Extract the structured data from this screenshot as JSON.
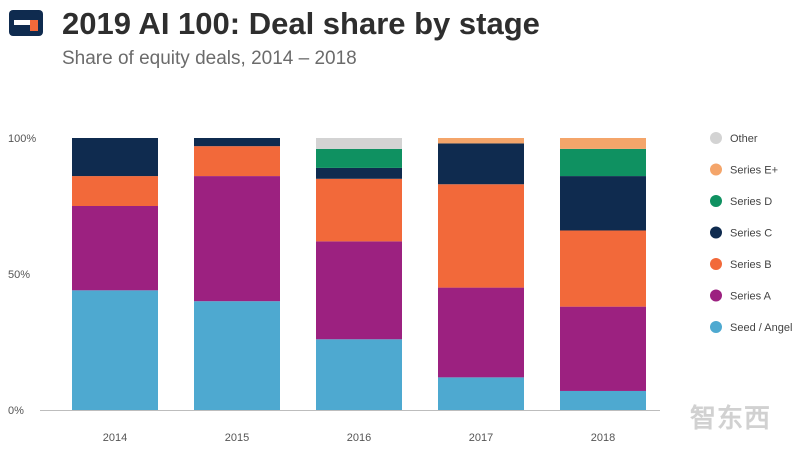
{
  "header": {
    "title": "2019 AI 100: Deal share by stage",
    "subtitle": "Share of equity deals, 2014 – 2018"
  },
  "brand": {
    "logo_dark": "#0f2b4f",
    "logo_accent": "#f2693a",
    "watermark": "智东西"
  },
  "chart_data": {
    "type": "bar",
    "stacked": true,
    "title": "2019 AI 100: Deal share by stage",
    "subtitle": "Share of equity deals, 2014 – 2018",
    "xlabel": "",
    "ylabel": "",
    "ylim": [
      0,
      100
    ],
    "y_ticks": [
      {
        "value": 0,
        "label": "0%"
      },
      {
        "value": 50,
        "label": "50%"
      },
      {
        "value": 100,
        "label": "100%"
      }
    ],
    "categories": [
      "2014",
      "2015",
      "2016",
      "2017",
      "2018"
    ],
    "legend_position": "right",
    "series": [
      {
        "name": "Seed / Angel",
        "color": "#4ea9d0",
        "values": [
          44,
          40,
          26,
          12,
          7
        ]
      },
      {
        "name": "Series A",
        "color": "#9c2180",
        "values": [
          31,
          46,
          36,
          33,
          31
        ]
      },
      {
        "name": "Series B",
        "color": "#f2693a",
        "values": [
          11,
          11,
          23,
          38,
          28
        ]
      },
      {
        "name": "Series C",
        "color": "#0f2b4f",
        "values": [
          14,
          3,
          4,
          15,
          20
        ]
      },
      {
        "name": "Series D",
        "color": "#0f9161",
        "values": [
          0,
          0,
          7,
          0,
          10
        ]
      },
      {
        "name": "Series E+",
        "color": "#f4a56a",
        "values": [
          0,
          0,
          0,
          2,
          4
        ]
      },
      {
        "name": "Other",
        "color": "#d3d3d3",
        "values": [
          0,
          0,
          4,
          0,
          0
        ]
      }
    ]
  }
}
